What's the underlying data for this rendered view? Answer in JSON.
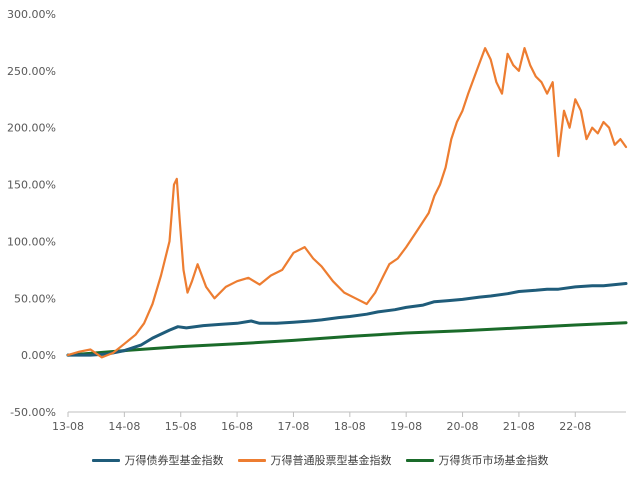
{
  "chart_data": {
    "type": "line",
    "title": "",
    "xlabel": "",
    "ylabel": "",
    "ylim": [
      -50,
      300
    ],
    "xlim": [
      2013.5,
      2023.4
    ],
    "y_ticks": [
      -50,
      0,
      50,
      100,
      150,
      200,
      250,
      300
    ],
    "y_tick_labels": [
      "-50.00%",
      "0.00%",
      "50.00%",
      "100.00%",
      "150.00%",
      "200.00%",
      "250.00%",
      "300.00%"
    ],
    "x_tick_positions": [
      2013.5,
      2014.5,
      2015.5,
      2016.5,
      2017.5,
      2018.5,
      2019.5,
      2020.5,
      2021.5,
      2022.5
    ],
    "x_tick_labels": [
      "13-08",
      "14-08",
      "15-08",
      "16-08",
      "17-08",
      "18-08",
      "19-08",
      "20-08",
      "21-08",
      "22-08"
    ],
    "grid": false,
    "legend_position": "bottom",
    "series": [
      {
        "name": "万得债券型基金指数",
        "color": "#1f5c7a",
        "x": [
          2013.5,
          2013.9,
          2014.2,
          2014.5,
          2014.8,
          2015.0,
          2015.3,
          2015.45,
          2015.6,
          2015.9,
          2016.2,
          2016.5,
          2016.75,
          2016.9,
          2017.2,
          2017.5,
          2017.8,
          2018.0,
          2018.3,
          2018.5,
          2018.8,
          2019.0,
          2019.3,
          2019.5,
          2019.8,
          2020.0,
          2020.25,
          2020.5,
          2020.8,
          2021.0,
          2021.3,
          2021.5,
          2021.8,
          2022.0,
          2022.2,
          2022.5,
          2022.8,
          2023.0,
          2023.2,
          2023.4
        ],
        "values": [
          0,
          0,
          1,
          4,
          9,
          15,
          22,
          25,
          24,
          26,
          27,
          28,
          30,
          28,
          28,
          29,
          30,
          31,
          33,
          34,
          36,
          38,
          40,
          42,
          44,
          47,
          48,
          49,
          51,
          52,
          54,
          56,
          57,
          58,
          58,
          60,
          61,
          61,
          62,
          63
        ]
      },
      {
        "name": "万得普通股票型基金指数",
        "color": "#ed7d31",
        "x": [
          2013.5,
          2013.7,
          2013.9,
          2014.1,
          2014.3,
          2014.5,
          2014.7,
          2014.85,
          2015.0,
          2015.15,
          2015.3,
          2015.38,
          2015.43,
          2015.48,
          2015.55,
          2015.62,
          2015.7,
          2015.8,
          2015.95,
          2016.1,
          2016.3,
          2016.5,
          2016.7,
          2016.9,
          2017.1,
          2017.3,
          2017.5,
          2017.7,
          2017.85,
          2018.0,
          2018.2,
          2018.4,
          2018.6,
          2018.8,
          2018.95,
          2019.1,
          2019.2,
          2019.35,
          2019.5,
          2019.7,
          2019.9,
          2020.0,
          2020.1,
          2020.2,
          2020.3,
          2020.4,
          2020.5,
          2020.6,
          2020.75,
          2020.9,
          2021.0,
          2021.1,
          2021.2,
          2021.3,
          2021.4,
          2021.5,
          2021.6,
          2021.7,
          2021.8,
          2021.9,
          2022.0,
          2022.1,
          2022.2,
          2022.3,
          2022.4,
          2022.5,
          2022.6,
          2022.7,
          2022.8,
          2022.9,
          2023.0,
          2023.1,
          2023.2,
          2023.3,
          2023.4
        ],
        "values": [
          0,
          3,
          5,
          -2,
          2,
          10,
          18,
          28,
          45,
          70,
          100,
          150,
          155,
          120,
          75,
          55,
          65,
          80,
          60,
          50,
          60,
          65,
          68,
          62,
          70,
          75,
          90,
          95,
          85,
          78,
          65,
          55,
          50,
          45,
          55,
          70,
          80,
          85,
          95,
          110,
          125,
          140,
          150,
          165,
          190,
          205,
          215,
          230,
          250,
          270,
          260,
          240,
          230,
          265,
          255,
          250,
          270,
          255,
          245,
          240,
          230,
          240,
          175,
          215,
          200,
          225,
          215,
          190,
          200,
          195,
          205,
          200,
          185,
          190,
          183
        ]
      },
      {
        "name": "万得货币市场基金指数",
        "color": "#1a6b2a",
        "x": [
          2013.5,
          2014.5,
          2015.5,
          2016.5,
          2017.5,
          2018.5,
          2019.5,
          2020.5,
          2021.5,
          2022.5,
          2023.4
        ],
        "values": [
          0,
          4,
          7.5,
          10,
          13,
          16.5,
          19.5,
          21.5,
          24,
          26.5,
          28.5
        ]
      }
    ]
  }
}
